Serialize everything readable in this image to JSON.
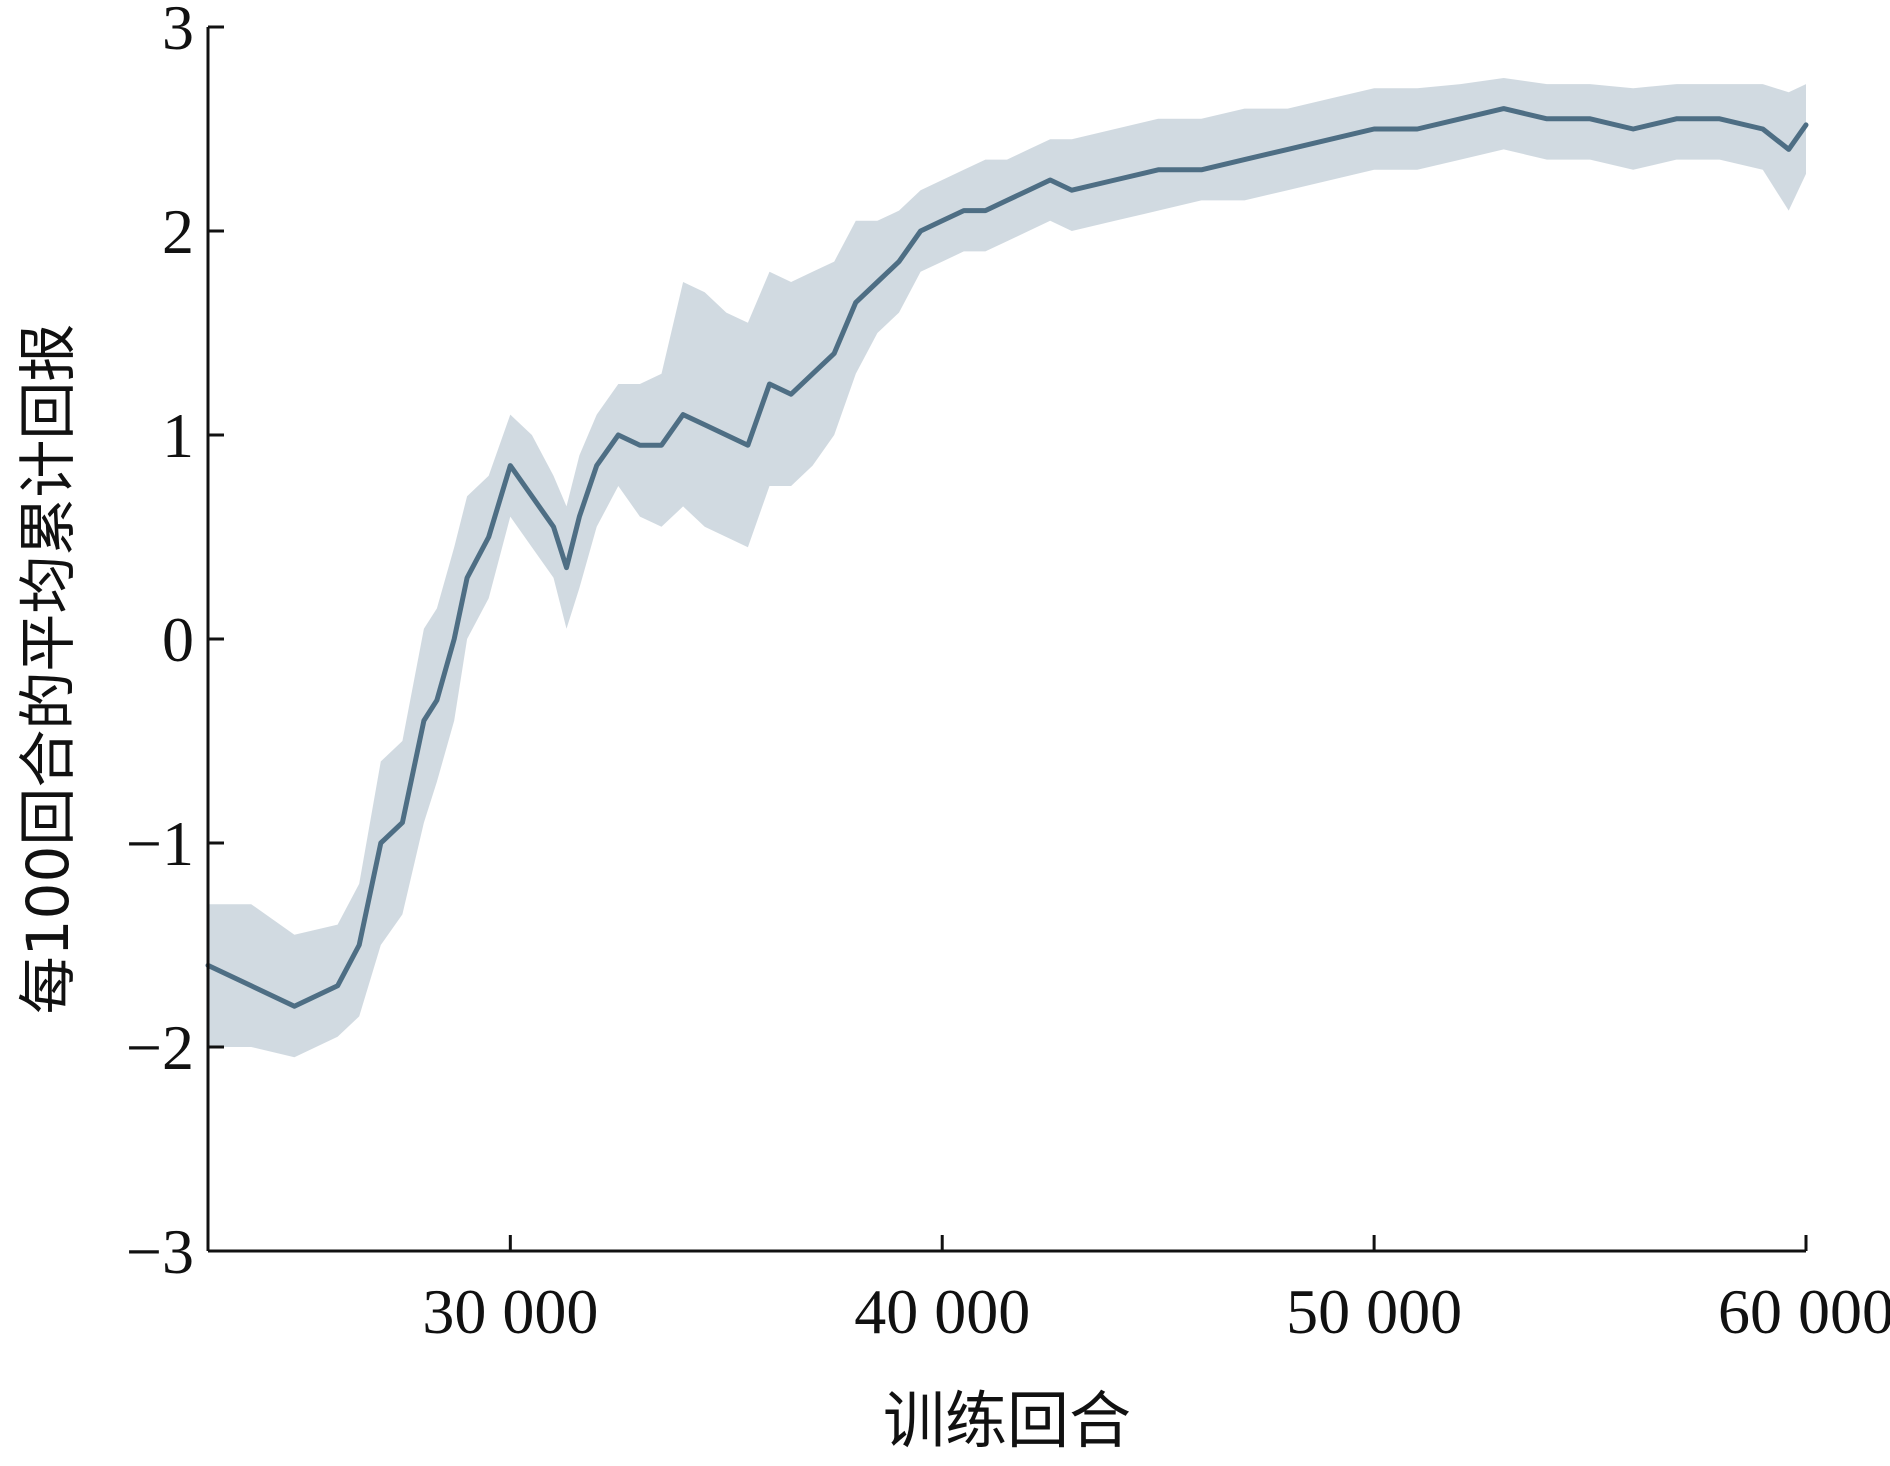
{
  "chart_data": {
    "type": "line",
    "title": "",
    "xlabel": "训练回合",
    "ylabel": "每100回合的平均累计回报",
    "xlim": [
      23000,
      60000
    ],
    "ylim": [
      -3,
      3
    ],
    "x_ticks": [
      30000,
      40000,
      50000,
      60000
    ],
    "x_tick_labels": [
      "30 000",
      "40 000",
      "50 000",
      "60 000"
    ],
    "y_ticks": [
      -3,
      -2,
      -1,
      0,
      1,
      2,
      3
    ],
    "y_tick_labels": [
      "−3",
      "−2",
      "−1",
      "0",
      "1",
      "2",
      "3"
    ],
    "grid": false,
    "legend": "none",
    "colors": {
      "line": "#4e6e84",
      "band": "#c9d3dc",
      "axis": "#111111"
    },
    "series": [
      {
        "x": [
          23000,
          24000,
          25000,
          26000,
          26500,
          27000,
          27500,
          28000,
          28300,
          28700,
          29000,
          29500,
          30000,
          30500,
          31000,
          31300,
          31600,
          32000,
          32500,
          33000,
          33500,
          34000,
          34500,
          35000,
          35500,
          36000,
          36500,
          37000,
          37500,
          38000,
          38500,
          39000,
          39500,
          40000,
          40500,
          41000,
          41500,
          42000,
          42500,
          43000,
          44000,
          45000,
          46000,
          47000,
          48000,
          49000,
          50000,
          51000,
          52000,
          53000,
          54000,
          55000,
          56000,
          57000,
          58000,
          59000,
          59600,
          60000
        ],
        "y": [
          -1.6,
          -1.7,
          -1.8,
          -1.7,
          -1.5,
          -1.0,
          -0.9,
          -0.4,
          -0.3,
          0.0,
          0.3,
          0.5,
          0.85,
          0.7,
          0.55,
          0.35,
          0.6,
          0.85,
          1.0,
          0.95,
          0.95,
          1.1,
          1.05,
          1.0,
          0.95,
          1.25,
          1.2,
          1.3,
          1.4,
          1.65,
          1.75,
          1.85,
          2.0,
          2.05,
          2.1,
          2.1,
          2.15,
          2.2,
          2.25,
          2.2,
          2.25,
          2.3,
          2.3,
          2.35,
          2.4,
          2.45,
          2.5,
          2.5,
          2.55,
          2.6,
          2.55,
          2.55,
          2.5,
          2.55,
          2.55,
          2.5,
          2.4,
          2.52
        ],
        "lower": [
          -2.0,
          -2.0,
          -2.05,
          -1.95,
          -1.85,
          -1.5,
          -1.35,
          -0.9,
          -0.7,
          -0.4,
          0.0,
          0.2,
          0.6,
          0.45,
          0.3,
          0.05,
          0.25,
          0.55,
          0.75,
          0.6,
          0.55,
          0.65,
          0.55,
          0.5,
          0.45,
          0.75,
          0.75,
          0.85,
          1.0,
          1.3,
          1.5,
          1.6,
          1.8,
          1.85,
          1.9,
          1.9,
          1.95,
          2.0,
          2.05,
          2.0,
          2.05,
          2.1,
          2.15,
          2.15,
          2.2,
          2.25,
          2.3,
          2.3,
          2.35,
          2.4,
          2.35,
          2.35,
          2.3,
          2.35,
          2.35,
          2.3,
          2.1,
          2.28
        ],
        "upper": [
          -1.3,
          -1.3,
          -1.45,
          -1.4,
          -1.2,
          -0.6,
          -0.5,
          0.05,
          0.15,
          0.45,
          0.7,
          0.8,
          1.1,
          1.0,
          0.8,
          0.65,
          0.9,
          1.1,
          1.25,
          1.25,
          1.3,
          1.75,
          1.7,
          1.6,
          1.55,
          1.8,
          1.75,
          1.8,
          1.85,
          2.05,
          2.05,
          2.1,
          2.2,
          2.25,
          2.3,
          2.35,
          2.35,
          2.4,
          2.45,
          2.45,
          2.5,
          2.55,
          2.55,
          2.6,
          2.6,
          2.65,
          2.7,
          2.7,
          2.72,
          2.75,
          2.72,
          2.72,
          2.7,
          2.72,
          2.72,
          2.72,
          2.68,
          2.72
        ]
      }
    ]
  }
}
